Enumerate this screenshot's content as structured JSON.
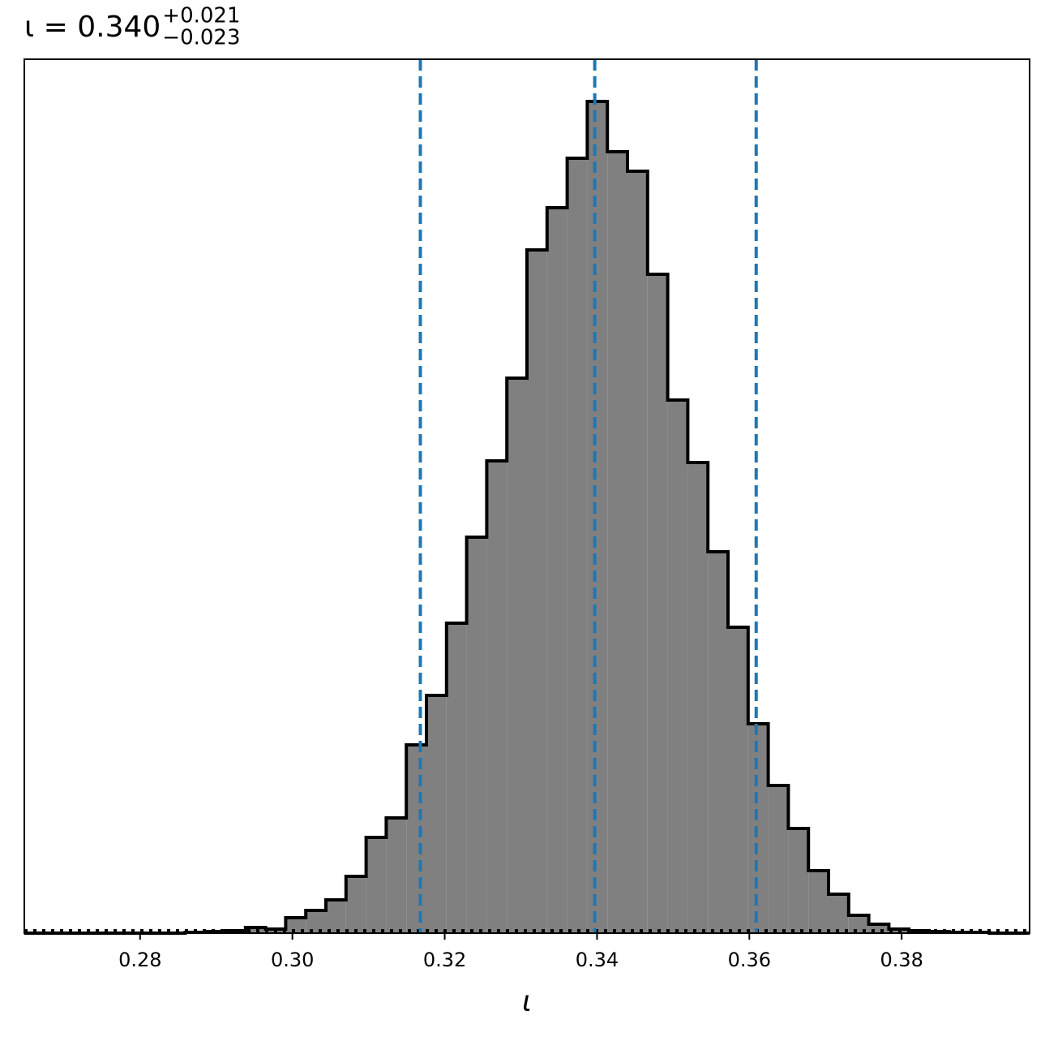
{
  "chart_data": {
    "type": "histogram",
    "title_main": "ι = 0.340",
    "title_sup": "+0.021",
    "title_sub": "−0.023",
    "x_label": "ι",
    "bins": [
      0.2648,
      0.26744,
      0.27008,
      0.27272,
      0.27536,
      0.278,
      0.28064,
      0.28328,
      0.28592,
      0.28856,
      0.2912,
      0.29384,
      0.29648,
      0.29912,
      0.30176,
      0.3044,
      0.30704,
      0.30968,
      0.31232,
      0.31496,
      0.3176,
      0.32024,
      0.32288,
      0.32552,
      0.32816,
      0.3308,
      0.33344,
      0.33608,
      0.33872,
      0.34136,
      0.344,
      0.34664,
      0.34928,
      0.35192,
      0.35456,
      0.3572,
      0.35984,
      0.36248,
      0.36512,
      0.36776,
      0.3704,
      0.37304,
      0.37568,
      0.37832,
      0.38096,
      0.3836,
      0.38624,
      0.38888,
      0.39152,
      0.39416,
      0.3968
    ],
    "values": [
      0,
      0,
      0,
      0,
      0,
      0,
      0,
      0,
      1,
      2,
      3,
      7,
      5,
      19,
      28,
      41,
      70,
      118,
      142,
      232,
      293,
      382,
      488,
      582,
      684,
      842,
      894,
      955,
      1025,
      963,
      939,
      812,
      657,
      580,
      470,
      377,
      258,
      182,
      129,
      77,
      48,
      22,
      11,
      5,
      3,
      2,
      1,
      1,
      0,
      0
    ],
    "color": "#808080",
    "edge_color": "#000000",
    "quantiles": [
      0.3168,
      0.3397,
      0.3609
    ],
    "quantile_color": "#1f77b4",
    "hline": 3,
    "xlim": [
      0.2648,
      0.3968
    ],
    "ylim": [
      0,
      1077
    ],
    "xticks": [
      0.28,
      {
        "value": 0.3,
        "label": "0.30"
      },
      0.32,
      0.34,
      0.36,
      0.38
    ]
  }
}
